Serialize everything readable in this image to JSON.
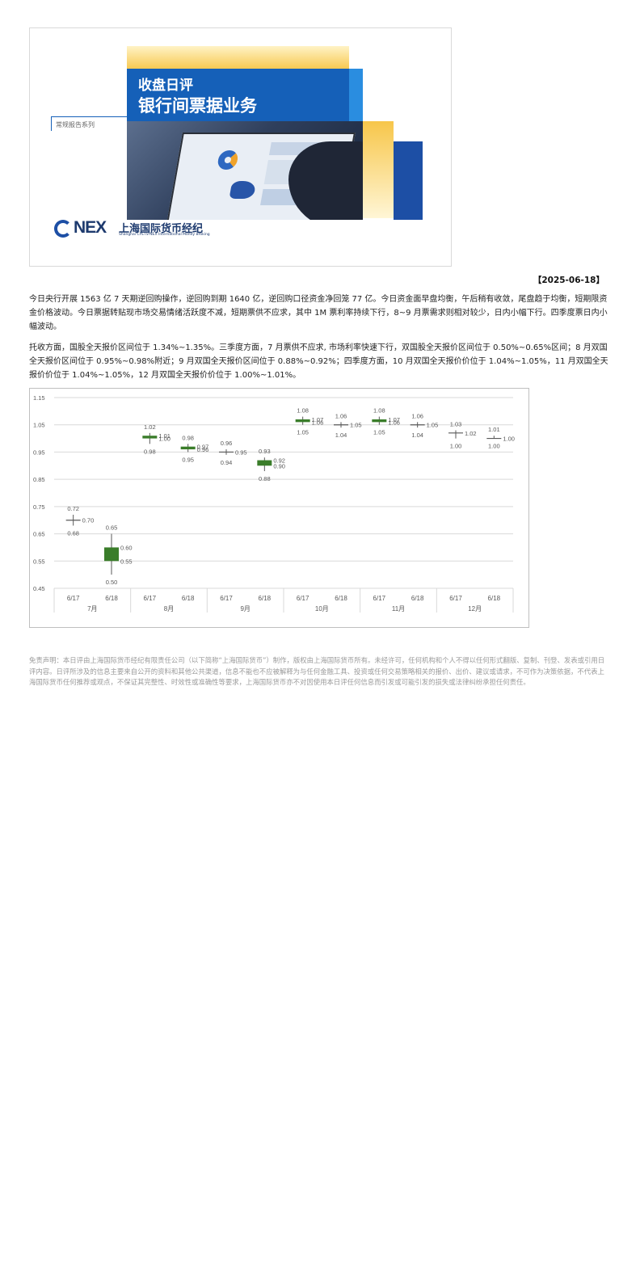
{
  "banner": {
    "title_line1": "收盘日评",
    "title_line2": "银行间票据业务",
    "series_label": "常规报告系列",
    "logo_text": "NEX",
    "logo_cn": "上海国际货币经纪",
    "logo_en": "Shanghai CFETS-NEX International Money Broking",
    "colors": {
      "blue": "#1560b8",
      "yellow": "#f7c64a",
      "navy": "#1d3a6e"
    }
  },
  "report_date": "【2025-06-18】",
  "paragraphs": [
    "今日央行开展 1563 亿 7 天期逆回购操作，逆回购到期 1640 亿，逆回购口径资金净回笼 77 亿。今日资金面早盘均衡，午后稍有收敛，尾盘趋于均衡，短期限资金价格波动。今日票据转贴现市场交易情绪活跃度不减，短期票供不应求，其中 1M 票利率持续下行，8~9 月票需求则相对较少，日内小幅下行。四季度票日内小幅波动。",
    "托收方面，国股全天报价区间位于 1.34%~1.35%。三季度方面，7 月票供不应求, 市场利率快速下行，双国股全天报价区间位于 0.50%~0.65%区间；8 月双国全天报价区间位于 0.95%~0.98%附近；9 月双国全天报价区间位于 0.88%~0.92%；四季度方面，10 月双国全天报价价位于 1.04%~1.05%，11 月双国全天报价价位于 1.04%~1.05%，12 月双国全天报价价位于 1.00%~1.01%。"
  ],
  "chart_data": {
    "type": "candlestick",
    "ylim": [
      0.45,
      1.15
    ],
    "yticks": [
      "1.15",
      "1.05",
      "0.95",
      "0.85",
      "0.75",
      "0.65",
      "0.55",
      "0.45"
    ],
    "grid": true,
    "groups": [
      "7月",
      "8月",
      "9月",
      "10月",
      "11月",
      "12月"
    ],
    "categories": [
      "6/17",
      "6/18",
      "6/17",
      "6/18",
      "6/17",
      "6/18",
      "6/17",
      "6/18",
      "6/17",
      "6/18",
      "6/17",
      "6/18"
    ],
    "candles": [
      {
        "high": 0.72,
        "low": 0.68,
        "open": 0.7,
        "close": 0.7,
        "labels": [
          "0.72",
          "0.70",
          "0.68"
        ]
      },
      {
        "high": 0.65,
        "low": 0.5,
        "open": 0.6,
        "close": 0.55,
        "labels": [
          "0.65",
          "0.60",
          "0.55",
          "0.50"
        ]
      },
      {
        "high": 1.02,
        "low": 0.98,
        "open": 1.01,
        "close": 1.0,
        "labels": [
          "1.02",
          "1.01",
          "1.00",
          "0.98"
        ]
      },
      {
        "high": 0.98,
        "low": 0.95,
        "open": 0.97,
        "close": 0.96,
        "labels": [
          "0.98",
          "0.97",
          "0.96",
          "0.95"
        ]
      },
      {
        "high": 0.96,
        "low": 0.94,
        "open": 0.95,
        "close": 0.95,
        "labels": [
          "0.96",
          "0.95",
          "0.94"
        ]
      },
      {
        "high": 0.93,
        "low": 0.88,
        "open": 0.92,
        "close": 0.9,
        "labels": [
          "0.93",
          "0.92",
          "0.90",
          "0.88"
        ]
      },
      {
        "high": 1.08,
        "low": 1.05,
        "open": 1.07,
        "close": 1.06,
        "labels": [
          "1.08",
          "1.07",
          "1.06",
          "1.05"
        ]
      },
      {
        "high": 1.06,
        "low": 1.04,
        "open": 1.05,
        "close": 1.05,
        "labels": [
          "1.06",
          "1.05",
          "1.04"
        ]
      },
      {
        "high": 1.08,
        "low": 1.05,
        "open": 1.07,
        "close": 1.06,
        "labels": [
          "1.08",
          "1.07",
          "1.06",
          "1.05"
        ]
      },
      {
        "high": 1.06,
        "low": 1.04,
        "open": 1.05,
        "close": 1.05,
        "labels": [
          "1.06",
          "1.05",
          "1.04"
        ]
      },
      {
        "high": 1.03,
        "low": 1.0,
        "open": 1.02,
        "close": 1.02,
        "labels": [
          "1.03",
          "1.02",
          "1.00"
        ]
      },
      {
        "high": 1.01,
        "low": 1.0,
        "open": 1.0,
        "close": 1.0,
        "labels": [
          "1.01",
          "1.00",
          "1.00"
        ]
      }
    ],
    "colors": {
      "body": "#3a7d2a",
      "wick": "#595959",
      "grid": "#d9d9d9",
      "text": "#595959"
    }
  },
  "disclaimer": "免责声明：本日评由上海国际货币经纪有限责任公司（以下简称“上海国际货币”）制作，版权由上海国际货币所有。未经许可，任何机构和个人不得以任何形式翻版、复制、刊登、发表或引用日评内容。日评所涉及的信息主要来自公开的资料和其他公共渠道，信息不能也不应被解释为与任何金融工具、投资或任何交易策略相关的报价、出价、建议或请求，不可作为决策依据，不代表上海国际货币任何推荐或观点，不保证其完整性、时效性或准确性等要求，上海国际货币亦不对因使用本日评任何信息而引发或可能引发的损失或法律纠纷承担任何责任。"
}
